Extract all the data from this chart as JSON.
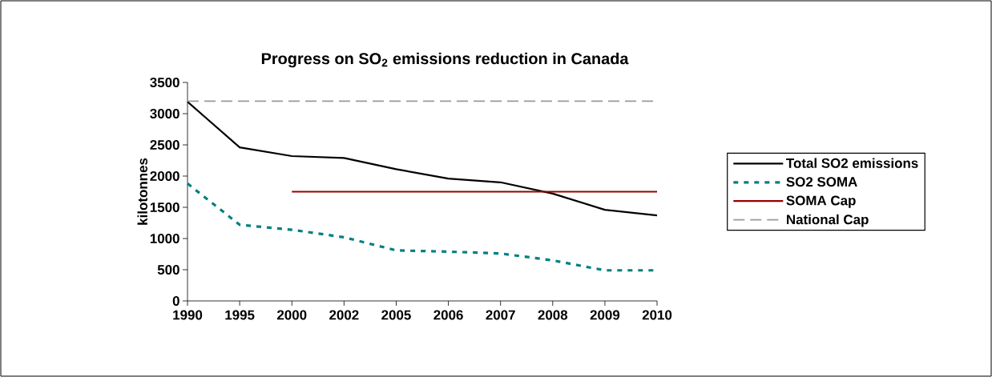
{
  "chart_data": {
    "type": "line",
    "title": "Progress on SO$_{2}$ emissions reduction in Canada",
    "ylabel": "kilotonnes",
    "categories": [
      "1990",
      "1995",
      "2000",
      "2002",
      "2005",
      "2006",
      "2007",
      "2008",
      "2009",
      "2010"
    ],
    "ylim": [
      0,
      3500
    ],
    "yticks": [
      0,
      500,
      1000,
      1500,
      2000,
      2500,
      3000,
      3500
    ],
    "legend": "right",
    "marker": "none",
    "series": [
      {
        "name": "Total SO2 emissions",
        "color": "#000000",
        "line_style": "solid",
        "values": [
          3190,
          2460,
          2320,
          2290,
          2110,
          1960,
          1900,
          1720,
          1460,
          1370
        ]
      },
      {
        "name": "SO2 SOMA",
        "color": "#008080",
        "line_style": "dotted",
        "values": [
          1880,
          1220,
          1140,
          1020,
          810,
          790,
          760,
          650,
          490,
          490
        ]
      },
      {
        "name": "SOMA Cap",
        "color": "#990000",
        "line_style": "solid",
        "values": [
          null,
          null,
          1750,
          1750,
          1750,
          1750,
          1750,
          1750,
          1750,
          1750
        ]
      },
      {
        "name": "National Cap",
        "color": "#999999",
        "line_style": "dashed",
        "values": [
          3200,
          3200,
          3200,
          3200,
          3200,
          3200,
          3200,
          3200,
          3200,
          3200
        ]
      }
    ]
  }
}
